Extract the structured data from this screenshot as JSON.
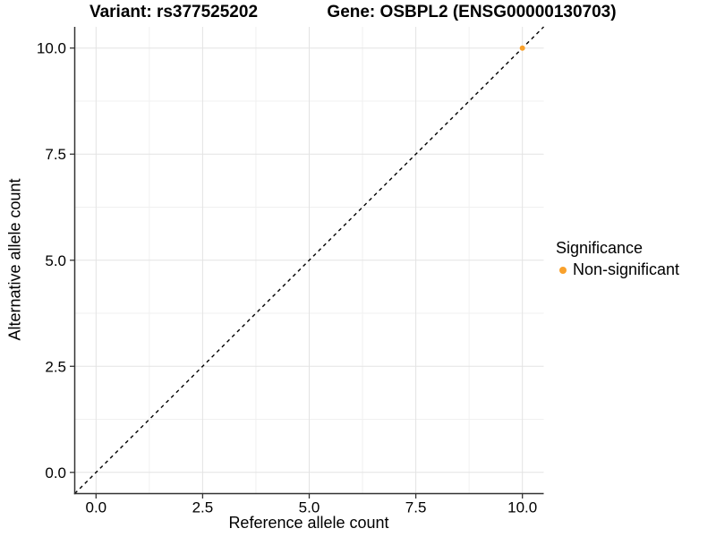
{
  "titles": {
    "variant": "Variant: rs377525202",
    "gene": "Gene: OSBPL2 (ENSG00000130703)"
  },
  "chart_data": {
    "type": "scatter",
    "title": "Variant: rs377525202    Gene: OSBPL2 (ENSG00000130703)",
    "xlabel": "Reference allele count",
    "ylabel": "Alternative allele count",
    "xlim": [
      -0.5,
      10.5
    ],
    "ylim": [
      -0.5,
      10.5
    ],
    "x_ticks": [
      0.0,
      2.5,
      5.0,
      7.5,
      10.0
    ],
    "y_ticks": [
      0.0,
      2.5,
      5.0,
      7.5,
      10.0
    ],
    "x_tick_labels": [
      "0.0",
      "2.5",
      "5.0",
      "7.5",
      "10.0"
    ],
    "y_tick_labels": [
      "0.0",
      "2.5",
      "5.0",
      "7.5",
      "10.0"
    ],
    "x_minor_ticks": [
      1.25,
      3.75,
      6.25,
      8.75
    ],
    "y_minor_ticks": [
      1.25,
      3.75,
      6.25,
      8.75
    ],
    "grid": true,
    "legend_position": "right",
    "series": [
      {
        "name": "Non-significant",
        "color": "#F9A12C",
        "points": [
          {
            "x": 10,
            "y": 10
          }
        ]
      }
    ],
    "reference_line": {
      "type": "identity",
      "style": "dashed",
      "from": [
        -0.5,
        -0.5
      ],
      "to": [
        10.5,
        10.5
      ],
      "color": "#000000"
    }
  },
  "legend": {
    "title": "Significance",
    "items": [
      {
        "label": "Non-significant",
        "color": "#F9A12C",
        "marker": "circle"
      }
    ]
  },
  "colors": {
    "background": "#FFFFFF",
    "grid_major": "#E3E3E3",
    "grid_minor": "#F0F0F0",
    "axis": "#333333",
    "text": "#000000",
    "point": "#F9A12C"
  }
}
